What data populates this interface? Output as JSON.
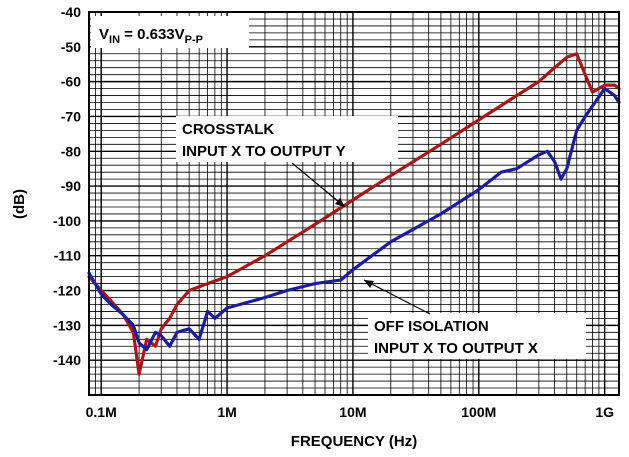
{
  "chart_data": {
    "type": "line",
    "xlabel": "FREQUENCY (Hz)",
    "ylabel": "(dB)",
    "x_scale": "log",
    "xlim": [
      80000,
      1300000000
    ],
    "ylim": [
      -150,
      -40
    ],
    "grid": true,
    "x_tick_values": [
      100000,
      1000000,
      10000000,
      100000000,
      1000000000
    ],
    "x_tick_labels": [
      "0.1M",
      "1M",
      "10M",
      "100M",
      "1G"
    ],
    "y_ticks": [
      -140,
      -130,
      -120,
      -110,
      -100,
      -90,
      -80,
      -70,
      -60,
      -50,
      -40
    ],
    "condition_label": {
      "main": "V",
      "sub1": "IN",
      "mid": " = 0.633V",
      "sub2": "P-P"
    },
    "annotations": {
      "crosstalk": [
        "CROSSTALK",
        "INPUT X TO OUTPUT Y"
      ],
      "off_isolation": [
        "OFF ISOLATION",
        "INPUT X TO OUTPUT X"
      ]
    },
    "series": [
      {
        "id": "crosstalk",
        "color": "#a01818",
        "x": [
          80000,
          100000,
          120000,
          150000,
          180000,
          200000,
          230000,
          270000,
          300000,
          350000,
          400000,
          500000,
          700000,
          1000000,
          2000000,
          5000000,
          10000000,
          20000000,
          50000000,
          100000000,
          200000000,
          300000000,
          400000000,
          500000000,
          600000000,
          700000000,
          800000000,
          1000000000,
          1200000000,
          1300000000
        ],
        "values": [
          -116,
          -120,
          -123,
          -127,
          -132,
          -144,
          -134,
          -136,
          -131,
          -128,
          -124,
          -120,
          -118,
          -116,
          -110,
          -101,
          -94,
          -87,
          -78,
          -71,
          -64,
          -60,
          -56,
          -53,
          -52,
          -58,
          -63,
          -61,
          -61,
          -62
        ]
      },
      {
        "id": "off_isolation",
        "color": "#1c1c96",
        "x": [
          80000,
          100000,
          120000,
          150000,
          180000,
          200000,
          230000,
          270000,
          300000,
          350000,
          400000,
          500000,
          600000,
          700000,
          800000,
          1000000,
          2000000,
          3000000,
          5000000,
          8000000,
          10000000,
          20000000,
          50000000,
          100000000,
          150000000,
          200000000,
          300000000,
          350000000,
          400000000,
          450000000,
          500000000,
          600000000,
          700000000,
          800000000,
          1000000000,
          1200000000,
          1300000000
        ],
        "values": [
          -115,
          -121,
          -124,
          -127,
          -130,
          -135,
          -137,
          -132,
          -133,
          -136,
          -132,
          -131,
          -134,
          -126,
          -128,
          -125,
          -122,
          -120,
          -118,
          -117,
          -114,
          -106,
          -98,
          -91,
          -86,
          -85,
          -81,
          -80,
          -83,
          -88,
          -85,
          -74,
          -70,
          -67,
          -62,
          -64,
          -66
        ]
      }
    ]
  }
}
